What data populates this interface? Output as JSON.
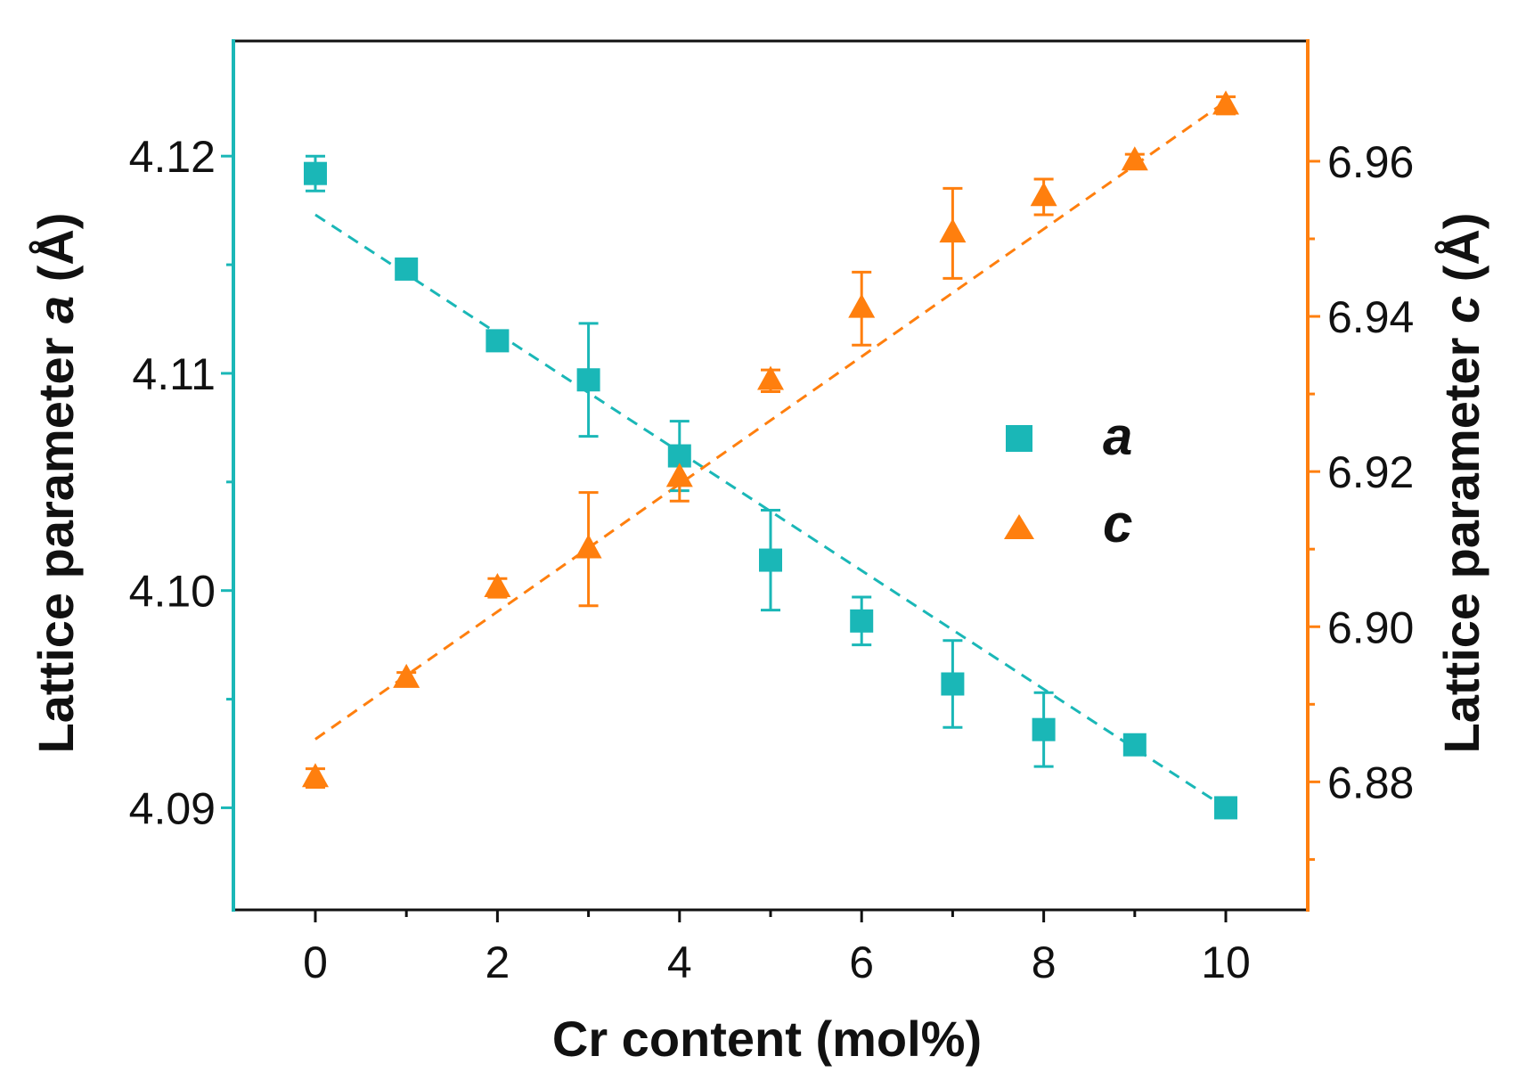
{
  "chart_data": {
    "type": "scatter",
    "title": "",
    "xlabel": "Cr content (mol%)",
    "ylabel_left": {
      "prefix": "Lattice parameter ",
      "var": "a",
      "suffix": " (Å)"
    },
    "ylabel_right": {
      "prefix": "Lattice parameter ",
      "var": "c",
      "suffix": " (Å)"
    },
    "xlim": [
      -0.9,
      10.9
    ],
    "xticks": [
      0,
      2,
      4,
      6,
      8,
      10
    ],
    "xticks_minor": [
      1,
      3,
      5,
      7,
      9
    ],
    "ylim_left": [
      4.0853,
      4.1253
    ],
    "yticks_left": [
      4.09,
      4.1,
      4.11,
      4.12
    ],
    "yticks_left_minor": [
      4.095,
      4.105,
      4.115
    ],
    "ylim_right": [
      6.8635,
      6.9755
    ],
    "yticks_right": [
      6.88,
      6.9,
      6.92,
      6.94,
      6.96
    ],
    "yticks_right_minor": [
      6.87,
      6.89,
      6.91,
      6.93,
      6.95
    ],
    "tick_format_left": 2,
    "tick_format_right": 2,
    "grid": false,
    "legend_position": "center-right",
    "series": [
      {
        "name": "a",
        "axis": "left",
        "marker": "square",
        "color": "#1ab7b7",
        "x": [
          0,
          1,
          2,
          3,
          4,
          5,
          6,
          7,
          8,
          9,
          10
        ],
        "y": [
          4.1192,
          4.1148,
          4.1115,
          4.1097,
          4.1062,
          4.1014,
          4.0986,
          4.0957,
          4.0936,
          4.0929,
          4.09
        ],
        "yerr": [
          0.0008,
          0.0002,
          0.0002,
          0.0026,
          0.0016,
          0.0023,
          0.0011,
          0.002,
          0.0017,
          0.0002,
          0.0002
        ],
        "fit": {
          "x": [
            0,
            10
          ],
          "y": [
            4.1173,
            4.09
          ],
          "style": "dashed"
        }
      },
      {
        "name": "c",
        "axis": "right",
        "marker": "triangle",
        "color": "#ff7f0e",
        "x": [
          0,
          1,
          2,
          3,
          4,
          5,
          6,
          7,
          8,
          9,
          10
        ],
        "y": [
          6.8805,
          6.8933,
          6.905,
          6.91,
          6.9192,
          6.9317,
          6.941,
          6.9507,
          6.9554,
          6.96,
          6.9672
        ],
        "yerr": [
          0.0012,
          0.0008,
          0.0012,
          0.0073,
          0.003,
          0.0014,
          0.0047,
          0.0058,
          0.0023,
          0.0009,
          0.0011
        ],
        "fit": {
          "x": [
            0,
            10
          ],
          "y": [
            6.8855,
            6.9677
          ],
          "style": "dashed"
        }
      }
    ]
  },
  "colors": {
    "left_axis": "#1ab7b7",
    "right_axis": "#ff7f0e",
    "frame": "#111111"
  }
}
